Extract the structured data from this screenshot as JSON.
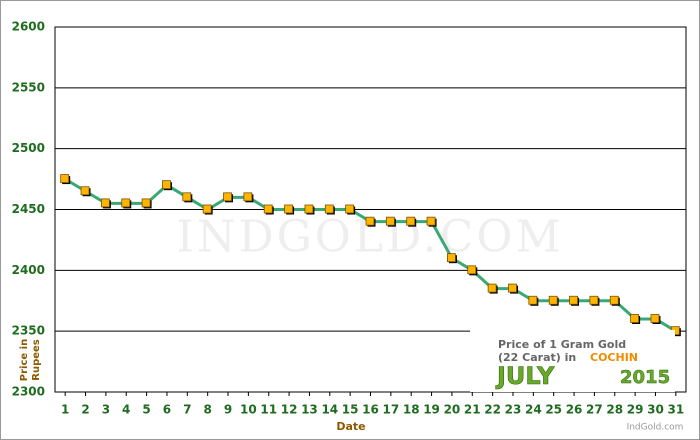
{
  "chart_data": {
    "type": "line",
    "ylabel": [
      "Price in",
      "Rupees"
    ],
    "xlabel": "Date",
    "watermark": "IndGold.com",
    "inset": {
      "line1": "Price of 1 Gram Gold",
      "line2": "(22 Carat) in",
      "city": "COCHIN",
      "month": "JULY",
      "year": "2015",
      "source": "IndGold.com"
    },
    "categories": [
      "1",
      "2",
      "3",
      "4",
      "5",
      "6",
      "7",
      "8",
      "9",
      "10",
      "11",
      "12",
      "13",
      "14",
      "15",
      "16",
      "17",
      "18",
      "19",
      "20",
      "21",
      "22",
      "23",
      "24",
      "25",
      "26",
      "27",
      "28",
      "29",
      "30",
      "31"
    ],
    "series": [
      {
        "color": "#3aa876",
        "marker_color": "#ffb400",
        "values": [
          2475,
          2465,
          2455,
          2455,
          2455,
          2470,
          2460,
          2450,
          2460,
          2460,
          2450,
          2450,
          2450,
          2450,
          2450,
          2440,
          2440,
          2440,
          2440,
          2410,
          2400,
          2385,
          2385,
          2375,
          2375,
          2375,
          2375,
          2375,
          2360,
          2360,
          2350
        ]
      }
    ],
    "ylim": [
      2300,
      2600
    ],
    "yticks": [
      2300,
      2350,
      2400,
      2450,
      2500,
      2550,
      2600
    ],
    "grid": true
  }
}
